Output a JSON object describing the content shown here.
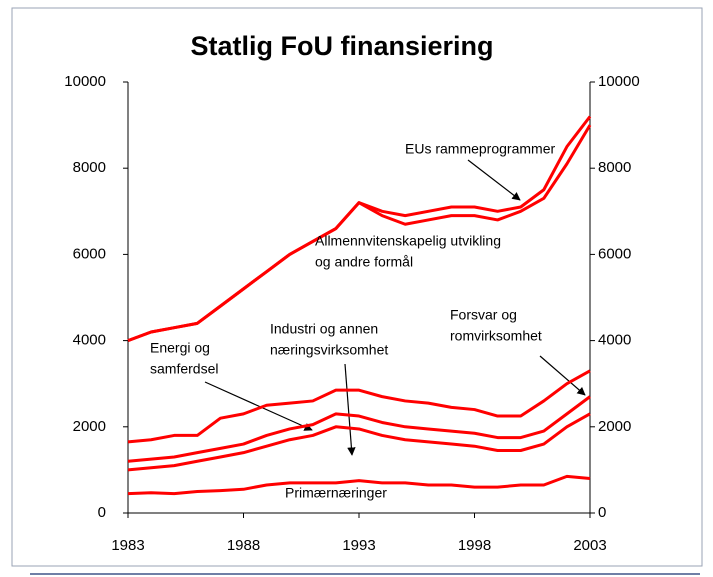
{
  "chart_data": {
    "type": "line",
    "title": "Statlig FoU finansiering",
    "x": [
      1983,
      1984,
      1985,
      1986,
      1987,
      1988,
      1989,
      1990,
      1991,
      1992,
      1993,
      1994,
      1995,
      1996,
      1997,
      1998,
      1999,
      2000,
      2001,
      2002,
      2003
    ],
    "xlim": [
      1983,
      2003
    ],
    "xticks": [
      1983,
      1988,
      1993,
      1998,
      2003
    ],
    "ylim": [
      0,
      10000
    ],
    "yticks": [
      0,
      2000,
      4000,
      6000,
      8000,
      10000
    ],
    "y2lim": [
      0,
      10000
    ],
    "y2ticks": [
      0,
      2000,
      4000,
      6000,
      8000,
      10000
    ],
    "grid": false,
    "series": [
      {
        "color": "#ff0000",
        "values": [
          4000,
          4200,
          4300,
          4400,
          4800,
          5200,
          5600,
          6000,
          6300,
          6600,
          7200,
          7000,
          6900,
          7000,
          7100,
          7100,
          7000,
          7100,
          7500,
          8500,
          9200
        ]
      },
      {
        "color": "#ff0000",
        "values": [
          4000,
          4200,
          4300,
          4400,
          4800,
          5200,
          5600,
          6000,
          6300,
          6600,
          7200,
          6900,
          6700,
          6800,
          6900,
          6900,
          6800,
          7000,
          7300,
          8100,
          9000
        ]
      },
      {
        "color": "#ff0000",
        "values": [
          1650,
          1700,
          1800,
          1800,
          2200,
          2300,
          2500,
          2550,
          2600,
          2850,
          2850,
          2700,
          2600,
          2550,
          2450,
          2400,
          2250,
          2250,
          2600,
          3000,
          3300
        ]
      },
      {
        "color": "#ff0000",
        "values": [
          1200,
          1250,
          1300,
          1400,
          1500,
          1600,
          1800,
          1950,
          2050,
          2300,
          2250,
          2100,
          2000,
          1950,
          1900,
          1850,
          1750,
          1750,
          1900,
          2300,
          2700
        ]
      },
      {
        "color": "#ff0000",
        "values": [
          1000,
          1050,
          1100,
          1200,
          1300,
          1400,
          1550,
          1700,
          1800,
          2000,
          1950,
          1800,
          1700,
          1650,
          1600,
          1550,
          1450,
          1450,
          1600,
          2000,
          2300
        ]
      },
      {
        "color": "#ff0000",
        "values": [
          450,
          470,
          450,
          500,
          520,
          550,
          650,
          700,
          700,
          700,
          750,
          700,
          700,
          650,
          650,
          600,
          600,
          650,
          650,
          850,
          800
        ]
      }
    ],
    "annotations": [
      [
        "EUs rammeprogrammer"
      ],
      [
        "Allmennvitenskapelig utvikling",
        "og andre formål"
      ],
      [
        "Forsvar og",
        "romvirksomhet"
      ],
      [
        "Industri og annen",
        "næringsvirksomhet"
      ],
      [
        "Energi og",
        "samferdsel"
      ],
      [
        "Primærnæringer"
      ]
    ]
  }
}
